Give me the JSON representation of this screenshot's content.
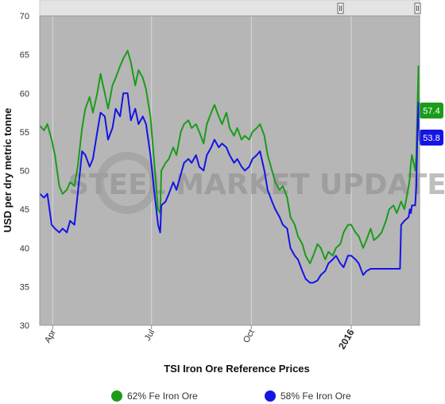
{
  "chart_data": {
    "type": "line",
    "title": "",
    "xlabel": "TSI Iron Ore Reference Prices",
    "ylabel": "USD per dry metric tonne",
    "ylim": [
      30,
      70
    ],
    "yticks": [
      30,
      35,
      40,
      45,
      50,
      55,
      60,
      65,
      70
    ],
    "xlim": [
      "2015-03-20",
      "2016-03-04"
    ],
    "xticks": [
      {
        "date": "2015-04-01",
        "label": "Apr",
        "bold": false
      },
      {
        "date": "2015-07-01",
        "label": "Jul",
        "bold": false
      },
      {
        "date": "2015-10-01",
        "label": "Oct",
        "bold": false
      },
      {
        "date": "2016-01-01",
        "label": "2016",
        "bold": true
      }
    ],
    "grid": "vertical",
    "legend_position": "bottom",
    "watermark": "STEEL MARKET UPDATE",
    "series": [
      {
        "name": "62% Fe Iron Ore",
        "color": "#1a9c1a",
        "last_value_label": "57.4",
        "points": [
          [
            "2015-03-20",
            55.8
          ],
          [
            "2015-03-24",
            55.2
          ],
          [
            "2015-03-27",
            56.0
          ],
          [
            "2015-03-31",
            54.0
          ],
          [
            "2015-04-03",
            52.0
          ],
          [
            "2015-04-07",
            48.0
          ],
          [
            "2015-04-10",
            47.0
          ],
          [
            "2015-04-14",
            47.5
          ],
          [
            "2015-04-17",
            48.5
          ],
          [
            "2015-04-21",
            48.0
          ],
          [
            "2015-04-24",
            50.5
          ],
          [
            "2015-04-28",
            55.5
          ],
          [
            "2015-05-01",
            58.0
          ],
          [
            "2015-05-05",
            59.5
          ],
          [
            "2015-05-08",
            57.5
          ],
          [
            "2015-05-12",
            60.0
          ],
          [
            "2015-05-15",
            62.5
          ],
          [
            "2015-05-19",
            60.0
          ],
          [
            "2015-05-22",
            58.0
          ],
          [
            "2015-05-26",
            61.0
          ],
          [
            "2015-05-29",
            62.0
          ],
          [
            "2015-06-02",
            63.5
          ],
          [
            "2015-06-05",
            64.5
          ],
          [
            "2015-06-09",
            65.5
          ],
          [
            "2015-06-12",
            64.0
          ],
          [
            "2015-06-16",
            61.0
          ],
          [
            "2015-06-19",
            63.0
          ],
          [
            "2015-06-23",
            62.0
          ],
          [
            "2015-06-26",
            60.5
          ],
          [
            "2015-06-30",
            57.0
          ],
          [
            "2015-07-03",
            52.0
          ],
          [
            "2015-07-07",
            45.0
          ],
          [
            "2015-07-09",
            44.5
          ],
          [
            "2015-07-10",
            50.0
          ],
          [
            "2015-07-14",
            51.0
          ],
          [
            "2015-07-17",
            51.5
          ],
          [
            "2015-07-21",
            53.0
          ],
          [
            "2015-07-24",
            52.0
          ],
          [
            "2015-07-28",
            55.0
          ],
          [
            "2015-07-31",
            56.0
          ],
          [
            "2015-08-04",
            56.5
          ],
          [
            "2015-08-07",
            55.5
          ],
          [
            "2015-08-11",
            56.0
          ],
          [
            "2015-08-14",
            55.0
          ],
          [
            "2015-08-18",
            53.5
          ],
          [
            "2015-08-21",
            56.0
          ],
          [
            "2015-08-25",
            57.5
          ],
          [
            "2015-08-28",
            58.5
          ],
          [
            "2015-09-01",
            57.0
          ],
          [
            "2015-09-04",
            56.0
          ],
          [
            "2015-09-08",
            57.5
          ],
          [
            "2015-09-11",
            55.5
          ],
          [
            "2015-09-15",
            54.5
          ],
          [
            "2015-09-18",
            55.5
          ],
          [
            "2015-09-22",
            54.0
          ],
          [
            "2015-09-25",
            54.5
          ],
          [
            "2015-09-29",
            54.0
          ],
          [
            "2015-10-02",
            55.0
          ],
          [
            "2015-10-06",
            55.5
          ],
          [
            "2015-10-09",
            56.0
          ],
          [
            "2015-10-13",
            54.5
          ],
          [
            "2015-10-16",
            52.0
          ],
          [
            "2015-10-20",
            50.0
          ],
          [
            "2015-10-23",
            48.5
          ],
          [
            "2015-10-27",
            47.5
          ],
          [
            "2015-10-30",
            48.0
          ],
          [
            "2015-11-03",
            46.5
          ],
          [
            "2015-11-06",
            44.0
          ],
          [
            "2015-11-10",
            43.0
          ],
          [
            "2015-11-13",
            41.5
          ],
          [
            "2015-11-17",
            40.5
          ],
          [
            "2015-11-20",
            39.0
          ],
          [
            "2015-11-24",
            38.0
          ],
          [
            "2015-11-27",
            39.0
          ],
          [
            "2015-12-01",
            40.5
          ],
          [
            "2015-12-04",
            40.0
          ],
          [
            "2015-12-08",
            38.5
          ],
          [
            "2015-12-11",
            39.5
          ],
          [
            "2015-12-15",
            39.0
          ],
          [
            "2015-12-18",
            40.0
          ],
          [
            "2015-12-22",
            40.5
          ],
          [
            "2015-12-25",
            42.0
          ],
          [
            "2015-12-29",
            43.0
          ],
          [
            "2016-01-01",
            43.0
          ],
          [
            "2016-01-05",
            42.0
          ],
          [
            "2016-01-08",
            41.5
          ],
          [
            "2016-01-12",
            40.0
          ],
          [
            "2016-01-15",
            41.0
          ],
          [
            "2016-01-19",
            42.5
          ],
          [
            "2016-01-22",
            41.0
          ],
          [
            "2016-01-26",
            41.5
          ],
          [
            "2016-01-29",
            42.0
          ],
          [
            "2016-02-02",
            43.5
          ],
          [
            "2016-02-05",
            45.0
          ],
          [
            "2016-02-09",
            45.5
          ],
          [
            "2016-02-12",
            44.5
          ],
          [
            "2016-02-16",
            46.0
          ],
          [
            "2016-02-19",
            45.0
          ],
          [
            "2016-02-23",
            48.0
          ],
          [
            "2016-02-24",
            49.0
          ],
          [
            "2016-02-25",
            51.0
          ],
          [
            "2016-02-26",
            52.0
          ],
          [
            "2016-02-29",
            50.0
          ],
          [
            "2016-03-01",
            52.0
          ],
          [
            "2016-03-02",
            58.0
          ],
          [
            "2016-03-03",
            63.5
          ],
          [
            "2016-03-04",
            57.4
          ]
        ]
      },
      {
        "name": "58% Fe Iron Ore",
        "color": "#1414e6",
        "last_value_label": "53.8",
        "points": [
          [
            "2015-03-20",
            47.0
          ],
          [
            "2015-03-24",
            46.5
          ],
          [
            "2015-03-27",
            47.0
          ],
          [
            "2015-03-31",
            43.0
          ],
          [
            "2015-04-03",
            42.5
          ],
          [
            "2015-04-07",
            42.0
          ],
          [
            "2015-04-10",
            42.5
          ],
          [
            "2015-04-14",
            42.0
          ],
          [
            "2015-04-17",
            43.5
          ],
          [
            "2015-04-21",
            43.0
          ],
          [
            "2015-04-24",
            47.0
          ],
          [
            "2015-04-28",
            52.5
          ],
          [
            "2015-05-01",
            52.0
          ],
          [
            "2015-05-05",
            50.5
          ],
          [
            "2015-05-08",
            51.5
          ],
          [
            "2015-05-12",
            55.0
          ],
          [
            "2015-05-15",
            57.5
          ],
          [
            "2015-05-19",
            57.0
          ],
          [
            "2015-05-22",
            54.0
          ],
          [
            "2015-05-26",
            55.5
          ],
          [
            "2015-05-29",
            58.0
          ],
          [
            "2015-06-02",
            57.0
          ],
          [
            "2015-06-05",
            60.0
          ],
          [
            "2015-06-09",
            60.0
          ],
          [
            "2015-06-12",
            56.5
          ],
          [
            "2015-06-16",
            58.0
          ],
          [
            "2015-06-19",
            56.0
          ],
          [
            "2015-06-23",
            57.0
          ],
          [
            "2015-06-26",
            56.0
          ],
          [
            "2015-06-30",
            52.0
          ],
          [
            "2015-07-03",
            48.0
          ],
          [
            "2015-07-07",
            43.0
          ],
          [
            "2015-07-09",
            42.0
          ],
          [
            "2015-07-10",
            45.5
          ],
          [
            "2015-07-14",
            46.0
          ],
          [
            "2015-07-17",
            47.0
          ],
          [
            "2015-07-21",
            48.5
          ],
          [
            "2015-07-24",
            47.5
          ],
          [
            "2015-07-28",
            49.5
          ],
          [
            "2015-07-31",
            51.0
          ],
          [
            "2015-08-04",
            51.5
          ],
          [
            "2015-08-07",
            51.0
          ],
          [
            "2015-08-11",
            52.0
          ],
          [
            "2015-08-14",
            50.5
          ],
          [
            "2015-08-18",
            50.0
          ],
          [
            "2015-08-21",
            52.0
          ],
          [
            "2015-08-25",
            53.0
          ],
          [
            "2015-08-28",
            54.0
          ],
          [
            "2015-09-01",
            53.0
          ],
          [
            "2015-09-04",
            53.5
          ],
          [
            "2015-09-08",
            53.0
          ],
          [
            "2015-09-11",
            52.0
          ],
          [
            "2015-09-15",
            51.0
          ],
          [
            "2015-09-18",
            51.5
          ],
          [
            "2015-09-22",
            50.5
          ],
          [
            "2015-09-25",
            50.0
          ],
          [
            "2015-09-29",
            50.5
          ],
          [
            "2015-10-02",
            51.5
          ],
          [
            "2015-10-06",
            52.0
          ],
          [
            "2015-10-09",
            52.5
          ],
          [
            "2015-10-13",
            50.0
          ],
          [
            "2015-10-16",
            47.5
          ],
          [
            "2015-10-20",
            46.0
          ],
          [
            "2015-10-23",
            45.0
          ],
          [
            "2015-10-27",
            44.0
          ],
          [
            "2015-10-30",
            43.0
          ],
          [
            "2015-11-03",
            42.5
          ],
          [
            "2015-11-06",
            40.0
          ],
          [
            "2015-11-10",
            39.0
          ],
          [
            "2015-11-13",
            38.5
          ],
          [
            "2015-11-17",
            37.0
          ],
          [
            "2015-11-20",
            36.0
          ],
          [
            "2015-11-24",
            35.5
          ],
          [
            "2015-11-27",
            35.5
          ],
          [
            "2015-12-01",
            35.8
          ],
          [
            "2015-12-04",
            36.5
          ],
          [
            "2015-12-08",
            37.0
          ],
          [
            "2015-12-11",
            38.0
          ],
          [
            "2015-12-15",
            38.5
          ],
          [
            "2015-12-18",
            39.0
          ],
          [
            "2015-12-22",
            38.0
          ],
          [
            "2015-12-25",
            37.5
          ],
          [
            "2015-12-29",
            39.0
          ],
          [
            "2016-01-01",
            39.0
          ],
          [
            "2016-01-05",
            38.5
          ],
          [
            "2016-01-08",
            38.0
          ],
          [
            "2016-01-12",
            36.5
          ],
          [
            "2016-01-15",
            37.0
          ],
          [
            "2016-01-19",
            37.3
          ],
          [
            "2016-01-22",
            37.3
          ],
          [
            "2016-01-26",
            37.3
          ],
          [
            "2016-01-29",
            37.3
          ],
          [
            "2016-02-02",
            37.3
          ],
          [
            "2016-02-05",
            37.3
          ],
          [
            "2016-02-09",
            37.3
          ],
          [
            "2016-02-12",
            37.3
          ],
          [
            "2016-02-15",
            37.3
          ],
          [
            "2016-02-16",
            43.0
          ],
          [
            "2016-02-19",
            43.5
          ],
          [
            "2016-02-23",
            44.0
          ],
          [
            "2016-02-24",
            45.0
          ],
          [
            "2016-02-25",
            44.5
          ],
          [
            "2016-02-26",
            45.5
          ],
          [
            "2016-02-29",
            45.5
          ],
          [
            "2016-03-01",
            48.0
          ],
          [
            "2016-03-02",
            55.0
          ],
          [
            "2016-03-03",
            58.8
          ],
          [
            "2016-03-04",
            53.8
          ]
        ]
      }
    ]
  }
}
